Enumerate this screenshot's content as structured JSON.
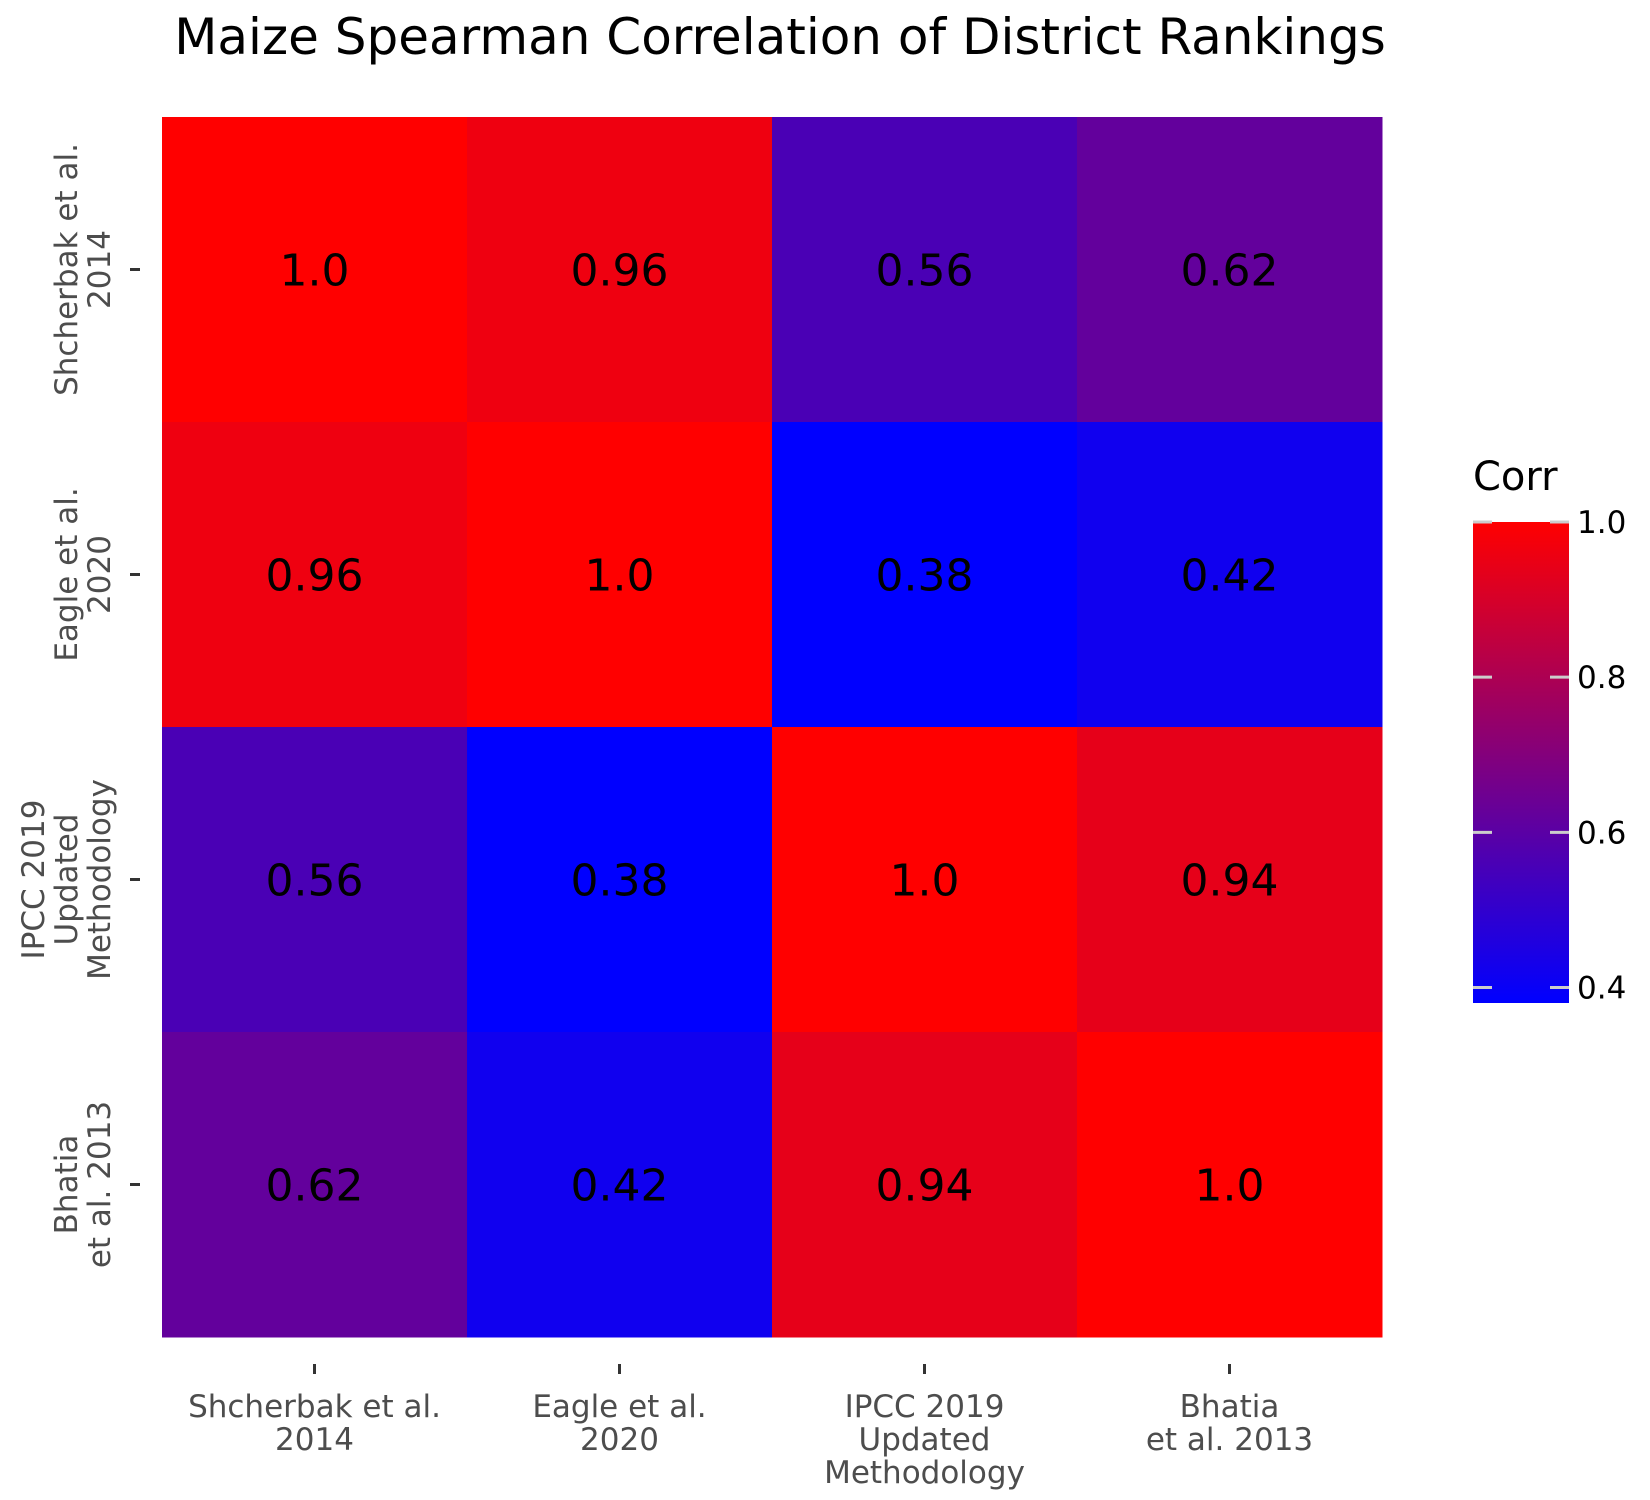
{
  "chart_data": {
    "type": "heatmap",
    "title": "Maize Spearman Correlation of District Rankings",
    "x_categories": [
      [
        "Shcherbak et al.",
        "2014"
      ],
      [
        "Eagle et al.",
        "2020"
      ],
      [
        "IPCC 2019",
        "Updated",
        "Methodology"
      ],
      [
        "Bhatia",
        "et al. 2013"
      ]
    ],
    "y_categories": [
      [
        "Shcherbak et al.",
        "2014"
      ],
      [
        "Eagle et al.",
        "2020"
      ],
      [
        "IPCC 2019",
        "Updated",
        "Methodology"
      ],
      [
        "Bhatia",
        "et al. 2013"
      ]
    ],
    "values": [
      [
        1.0,
        0.96,
        0.56,
        0.62
      ],
      [
        0.96,
        1.0,
        0.38,
        0.42
      ],
      [
        0.56,
        0.38,
        1.0,
        0.94
      ],
      [
        0.62,
        0.42,
        0.94,
        1.0
      ]
    ],
    "cell_labels": [
      [
        "1.0",
        "0.96",
        "0.56",
        "0.62"
      ],
      [
        "0.96",
        "1.0",
        "0.38",
        "0.42"
      ],
      [
        "0.56",
        "0.38",
        "1.0",
        "0.94"
      ],
      [
        "0.62",
        "0.42",
        "0.94",
        "1.0"
      ]
    ],
    "colorbar": {
      "title": "Corr",
      "ticks": [
        1.0,
        0.8,
        0.6,
        0.4
      ],
      "tick_labels": [
        "1.0",
        "0.8",
        "0.6",
        "0.4"
      ],
      "range": [
        0.38,
        1.0
      ],
      "low_color": "#0000ff",
      "high_color": "#ff0000"
    },
    "xlabel": "",
    "ylabel": ""
  }
}
